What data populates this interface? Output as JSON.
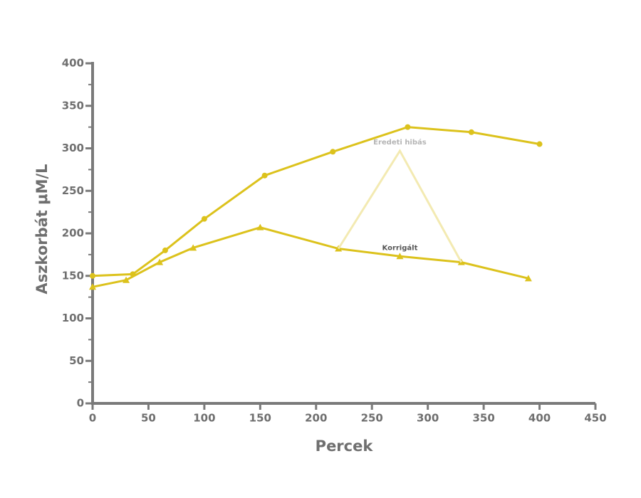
{
  "chart_data": {
    "type": "line",
    "x_label": "Percek",
    "y_label": "Aszkorbát μM/L",
    "xlim": [
      0,
      450
    ],
    "xticks": [
      0,
      50,
      100,
      150,
      200,
      250,
      300,
      350,
      400,
      450
    ],
    "ylim": [
      0,
      400
    ],
    "yticks": [
      0,
      50,
      100,
      150,
      200,
      250,
      300,
      350,
      400
    ],
    "grid": false,
    "series": [
      {
        "color": "#dcc21c",
        "marker": "circle",
        "x": [
          0,
          36,
          65,
          100,
          154,
          215,
          282,
          339,
          400
        ],
        "values": [
          150,
          152,
          180,
          217,
          268,
          296,
          325,
          319,
          305
        ]
      },
      {
        "color": "#dcc21c",
        "marker": "triangle",
        "x": [
          0,
          30,
          60,
          90,
          150,
          220,
          275,
          330,
          390
        ],
        "values": [
          137,
          145,
          166,
          183,
          207,
          182,
          173,
          166,
          147
        ]
      },
      {
        "color": "#f3eab2",
        "marker": "none",
        "x": [
          220,
          275,
          330
        ],
        "values": [
          182,
          297,
          166
        ]
      }
    ],
    "annotations": [
      {
        "text": "Eredeti hibás",
        "x": 275,
        "y": 297,
        "color": "#b5b5b5"
      },
      {
        "text": "Korrigált",
        "x": 275,
        "y": 173,
        "color": "#555555"
      }
    ]
  }
}
